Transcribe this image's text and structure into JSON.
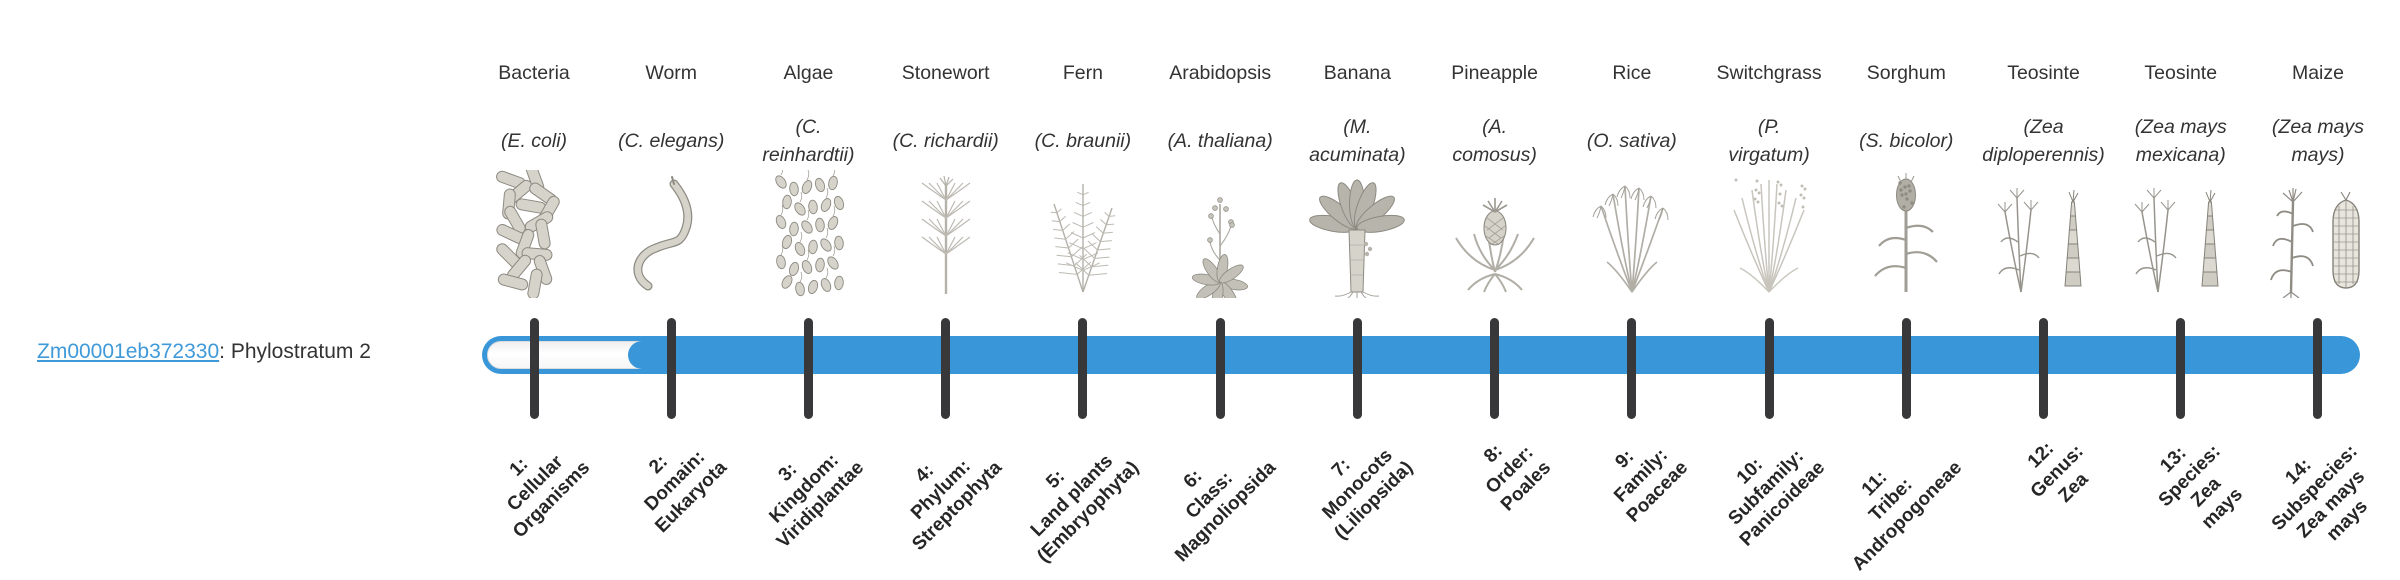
{
  "gene_label": {
    "link_text": "Zm00001eb372330",
    "suffix_text": ": Phylostratum 2"
  },
  "chart_data": {
    "type": "bar",
    "title": "Zm00001eb372330: Phylostratum 2",
    "gene": "Zm00001eb372330",
    "phylostratum": 2,
    "num_strata": 14,
    "bar": {
      "filled_from_stratum": 2,
      "filled_to_stratum": 14,
      "bar_color": "#3997d9",
      "track_color": "#fbfbfb",
      "tick_color": "#38383b",
      "link_color": "#4099d8"
    },
    "organisms": [
      {
        "common": "Bacteria",
        "scientific_lines": [
          "(E. coli)"
        ],
        "icon": "bacteria"
      },
      {
        "common": "Worm",
        "scientific_lines": [
          "(C. elegans)"
        ],
        "icon": "worm"
      },
      {
        "common": "Algae",
        "scientific_lines": [
          "(C.",
          "reinhardtii)"
        ],
        "icon": "algae"
      },
      {
        "common": "Stonewort",
        "scientific_lines": [
          "(C. richardii)"
        ],
        "icon": "stonewort"
      },
      {
        "common": "Fern",
        "scientific_lines": [
          "(C. braunii)"
        ],
        "icon": "fern"
      },
      {
        "common": "Arabidopsis",
        "scientific_lines": [
          "(A. thaliana)"
        ],
        "icon": "arabidopsis"
      },
      {
        "common": "Banana",
        "scientific_lines": [
          "(M.",
          "acuminata)"
        ],
        "icon": "banana"
      },
      {
        "common": "Pineapple",
        "scientific_lines": [
          "(A.",
          "comosus)"
        ],
        "icon": "pineapple"
      },
      {
        "common": "Rice",
        "scientific_lines": [
          "(O. sativa)"
        ],
        "icon": "rice"
      },
      {
        "common": "Switchgrass",
        "scientific_lines": [
          "(P.",
          "virgatum)"
        ],
        "icon": "switchgrass"
      },
      {
        "common": "Sorghum",
        "scientific_lines": [
          "(S. bicolor)"
        ],
        "icon": "sorghum"
      },
      {
        "common": "Teosinte",
        "scientific_lines": [
          "(Zea",
          "diploperennis)"
        ],
        "icon": "teosinte"
      },
      {
        "common": "Teosinte",
        "scientific_lines": [
          "(Zea mays",
          "mexicana)"
        ],
        "icon": "teosinte"
      },
      {
        "common": "Maize",
        "scientific_lines": [
          "(Zea mays",
          "mays)"
        ],
        "icon": "maize"
      }
    ],
    "phylostrata": [
      {
        "lines": [
          "1:",
          "Cellular",
          "Organisms"
        ]
      },
      {
        "lines": [
          "2:",
          "Domain:",
          "Eukaryota"
        ]
      },
      {
        "lines": [
          "3:",
          "Kingdom:",
          "Viridiplantae"
        ]
      },
      {
        "lines": [
          "4:",
          "Phylum:",
          "Streptophyta"
        ]
      },
      {
        "lines": [
          "5:",
          "Land plants",
          "(Embryophyta)"
        ]
      },
      {
        "lines": [
          "6:",
          "Class:",
          "Magnoliopsida"
        ]
      },
      {
        "lines": [
          "7:",
          "Monocots",
          "(Liliopsida)"
        ]
      },
      {
        "lines": [
          "8:",
          "Order:",
          "Poales"
        ]
      },
      {
        "lines": [
          "9:",
          "Family:",
          "Poaceae"
        ]
      },
      {
        "lines": [
          "10:",
          "Subfamily:",
          "Panicoideae"
        ]
      },
      {
        "lines": [
          "11:",
          "Tribe:",
          "Andropogoneae"
        ]
      },
      {
        "lines": [
          "12:",
          "Genus:",
          "Zea"
        ]
      },
      {
        "lines": [
          "13:",
          "Species:",
          "Zea",
          "mays"
        ]
      },
      {
        "lines": [
          "14:",
          "Subspecies:",
          "Zea mays",
          "mays"
        ]
      }
    ]
  }
}
